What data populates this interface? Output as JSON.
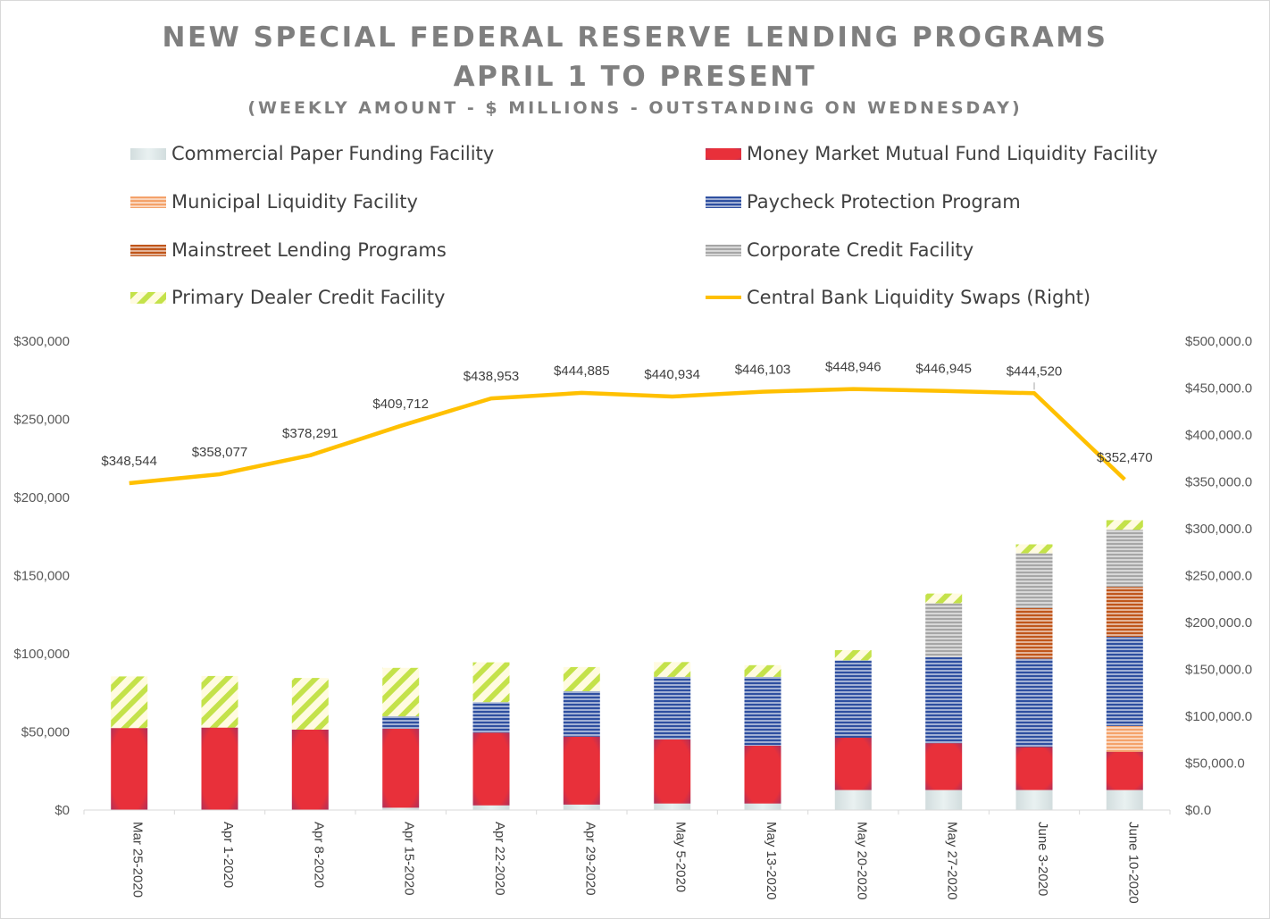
{
  "chart_data": {
    "type": "bar",
    "stacked": true,
    "title_lines": [
      "NEW SPECIAL FEDERAL RESERVE LENDING PROGRAMS",
      "APRIL 1 TO PRESENT"
    ],
    "subtitle": "(WEEKLY AMOUNT  - $ MILLIONS - OUTSTANDING ON WEDNESDAY)",
    "categories": [
      "Mar 25-2020",
      "Apr 1-2020",
      "Apr 8-2020",
      "Apr 15-2020",
      "Apr 22-2020",
      "Apr 29-2020",
      "May 5-2020",
      "May 13-2020",
      "May 20-2020",
      "May 27-2020",
      "June 3-2020",
      "June 10-2020"
    ],
    "y_left": {
      "min": 0,
      "max": 300000,
      "step": 50000,
      "tick_labels": [
        "$0",
        "$50,000",
        "$100,000",
        "$150,000",
        "$200,000",
        "$250,000",
        "$300,000"
      ]
    },
    "y_right": {
      "min": 0,
      "max": 500000,
      "step": 50000,
      "tick_labels": [
        "$0.0",
        "$50,000.0",
        "$100,000.0",
        "$150,000.0",
        "$200,000.0",
        "$250,000.0",
        "$300,000.0",
        "$350,000.0",
        "$400,000.0",
        "$450,000.0",
        "$500,000.0"
      ]
    },
    "series": [
      {
        "name": "Commercial Paper Funding Facility",
        "pattern": "solid",
        "color": "#dde9ea",
        "values": [
          0,
          0,
          0,
          1500,
          3000,
          3500,
          4200,
          4200,
          12800,
          12800,
          12800,
          12800
        ]
      },
      {
        "name": "Money Market Mutual Fund Liquidity Facility",
        "pattern": "radial",
        "color": "#e8303a",
        "values": [
          52500,
          52800,
          51500,
          50500,
          46500,
          43500,
          41000,
          37000,
          33500,
          30000,
          27500,
          24500
        ]
      },
      {
        "name": "Municipal Liquidity Facility",
        "pattern": "hlines",
        "color": "#f4a26a",
        "values": [
          0,
          0,
          0,
          0,
          0,
          0,
          0,
          0,
          0,
          0,
          0,
          16500
        ]
      },
      {
        "name": "Paycheck Protection Program",
        "pattern": "hlines",
        "color": "#2e4fa0",
        "values": [
          0,
          0,
          0,
          8000,
          19500,
          29000,
          40000,
          44000,
          49500,
          55000,
          56500,
          57000
        ]
      },
      {
        "name": "Mainstreet Lending Programs",
        "pattern": "hlines",
        "color": "#c0561b",
        "values": [
          0,
          0,
          0,
          0,
          0,
          0,
          0,
          0,
          0,
          0,
          32500,
          32000
        ]
      },
      {
        "name": "Corporate Credit Facility",
        "pattern": "hlines",
        "color": "#a6a6a6",
        "values": [
          0,
          0,
          0,
          0,
          0,
          0,
          0,
          0,
          0,
          34500,
          35000,
          36500
        ]
      },
      {
        "name": "Primary Dealer Credit Facility",
        "pattern": "diag",
        "color": "#c4e24a",
        "values": [
          33000,
          33000,
          33000,
          31000,
          25500,
          15500,
          9500,
          7500,
          6500,
          6200,
          5700,
          6200
        ]
      }
    ],
    "line": {
      "name": "Central Bank Liquidity Swaps (Right)",
      "axis": "right",
      "color": "#ffc000",
      "values": [
        348544,
        358077,
        378291,
        409712,
        438953,
        444885,
        440934,
        446103,
        448946,
        446945,
        444520,
        352470
      ],
      "labels": [
        "$348,544",
        "$358,077",
        "$378,291",
        "$409,712",
        "$438,953",
        "$444,885",
        "$440,934",
        "$446,103",
        "$448,946",
        "$446,945",
        "$444,520",
        "$352,470"
      ]
    },
    "legend_position": "top",
    "grid": false
  }
}
